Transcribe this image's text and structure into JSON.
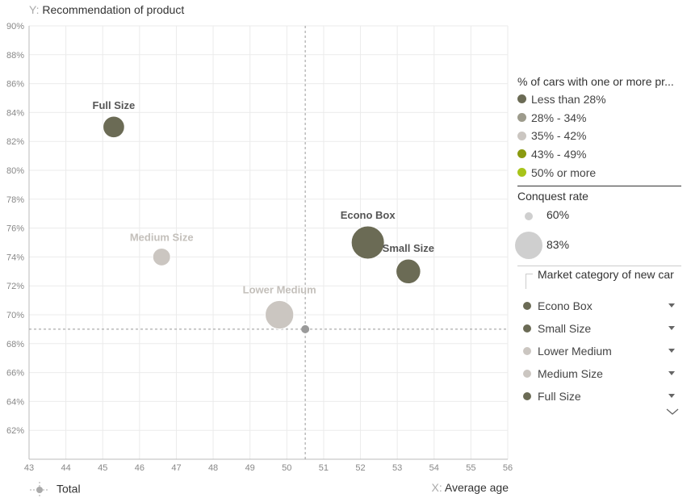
{
  "chart_data": {
    "type": "scatter",
    "subtype": "bubble",
    "title": "",
    "xlabel": "Average age",
    "ylabel": "Recommendation of product",
    "axis_letters": {
      "x": "X:",
      "y": "Y:"
    },
    "xlim": [
      43,
      56
    ],
    "ylim": [
      60,
      90
    ],
    "x_ticks": [
      43,
      44,
      45,
      46,
      47,
      48,
      49,
      50,
      51,
      52,
      53,
      54,
      55,
      56
    ],
    "y_ticks": [
      "62%",
      "64%",
      "66%",
      "68%",
      "70%",
      "72%",
      "74%",
      "76%",
      "78%",
      "80%",
      "82%",
      "84%",
      "86%",
      "88%",
      "90%"
    ],
    "y_tick_values": [
      62,
      64,
      66,
      68,
      70,
      72,
      74,
      76,
      78,
      80,
      82,
      84,
      86,
      88,
      90
    ],
    "grid": true,
    "points": [
      {
        "label": "Full Size",
        "x": 45.3,
        "y": 83,
        "size": 67,
        "color": "#6b6b55",
        "label_color": "#555555"
      },
      {
        "label": "Medium Size",
        "x": 46.6,
        "y": 74,
        "size": 62,
        "color": "#cbc6c1",
        "label_color": "#c4c0bb"
      },
      {
        "label": "Lower Medium",
        "x": 49.8,
        "y": 70,
        "size": 76,
        "color": "#cbc6c1",
        "label_color": "#c4c0bb"
      },
      {
        "label": "Econo Box",
        "x": 52.2,
        "y": 75,
        "size": 82,
        "color": "#6b6b55",
        "label_color": "#555555"
      },
      {
        "label": "Small Size",
        "x": 53.3,
        "y": 73,
        "size": 71,
        "color": "#6b6b55",
        "label_color": "#555555"
      }
    ],
    "total": {
      "label": "Total",
      "x": 50.5,
      "y": 69,
      "color": "#9a9a9a"
    }
  },
  "legend": {
    "color_title": "% of cars with one or more pr...",
    "color_items": [
      {
        "label": "Less than 28%",
        "color": "#6b6b55"
      },
      {
        "label": "28% - 34%",
        "color": "#9d9b8c"
      },
      {
        "label": "35% - 42%",
        "color": "#cbc6c1"
      },
      {
        "label": "43% - 49%",
        "color": "#8a9a10"
      },
      {
        "label": "50% or more",
        "color": "#a8c41a"
      }
    ],
    "size_title": "Conquest rate",
    "size_items": [
      {
        "label": "60%"
      },
      {
        "label": "83%"
      }
    ],
    "category_title": "Market category of new car",
    "category_items": [
      {
        "label": "Econo Box",
        "color": "#6b6b55"
      },
      {
        "label": "Small Size",
        "color": "#6b6b55"
      },
      {
        "label": "Lower Medium",
        "color": "#cbc6c1"
      },
      {
        "label": "Medium Size",
        "color": "#cbc6c1"
      },
      {
        "label": "Full Size",
        "color": "#6b6b55"
      }
    ]
  }
}
